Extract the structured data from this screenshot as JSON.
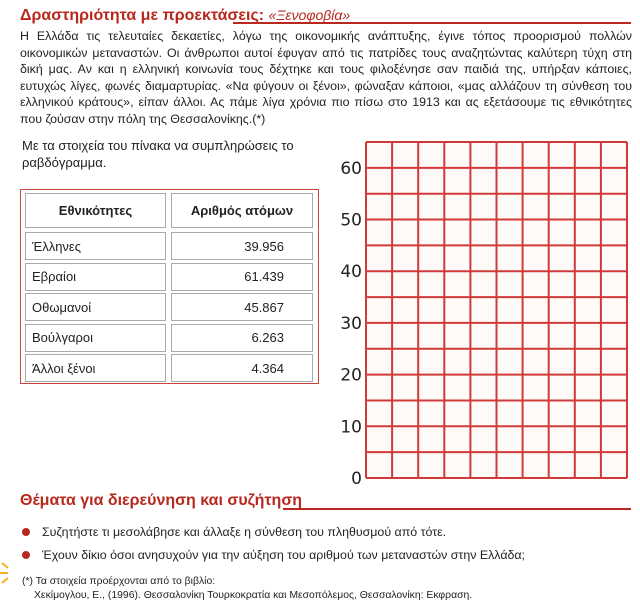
{
  "heading": {
    "title": "Δραστηριότητα με προεκτάσεις:",
    "subtitle": "«Ξενοφοβία»"
  },
  "body": "Η Ελλάδα τις τελευταίες δεκαετίες, λόγω της οικονομικής ανάπτυξης, έγινε τόπος προορισμού πολλών οικονομικών μεταναστών. Οι άνθρωποι αυτοί έφυγαν από τις πατρίδες τους αναζητώντας καλύτερη τύχη στη δική μας. Αν και η ελληνική κοινωνία τους δέχτηκε και τους φιλοξένησε σαν παιδιά της, υπήρξαν κάποιες, ευτυχώς λίγες, φωνές διαμαρτυρίας. «Να φύγουν οι ξένοι», φώναξαν κάποιοι, «μας αλλάζουν τη σύνθεση του ελληνικού κράτους», είπαν άλλοι. Ας πάμε λίγα χρόνια πιο πίσω στο 1913 και ας εξετάσουμε τις εθνικότητες που ζούσαν στην πόλη της Θεσσαλονίκης.(*)",
  "instruction": "Με τα στοιχεία του πίνακα να συμπληρώσεις το ραβδόγραμμα.",
  "table": {
    "headers": [
      "Εθνικότητες",
      "Αριθμός ατόμων"
    ],
    "rows": [
      [
        "Έλληνες",
        "39.956"
      ],
      [
        "Εβραίοι",
        "61.439"
      ],
      [
        "Οθωμανοί",
        "45.867"
      ],
      [
        "Βούλγαροι",
        "6.263"
      ],
      [
        "Άλλοι ξένοι",
        "4.364"
      ]
    ]
  },
  "chart_data": {
    "type": "bar",
    "categories": [],
    "values": [],
    "ylim": [
      0,
      65
    ],
    "yticks": [
      "0",
      "10",
      "20",
      "30",
      "40",
      "50",
      "60"
    ],
    "grid": true,
    "grid_color": "#d23a3a",
    "columns": 10
  },
  "discussion": {
    "title": "Θέματα για διερεύνηση και συζήτηση",
    "bullets": [
      "Συζητήστε τι μεσολάβησε και άλλαξε η σύνθεση του πληθυσμού από τότε.",
      "Έχουν δίκιο όσοι ανησυχούν για την αύξηση του αριθμού των μεταναστών στην Ελλάδα;"
    ]
  },
  "footnote": {
    "line1": "(*) Τα στοιχεία προέρχονται από το βιβλίο:",
    "line2": "Χεκίμογλου, Ε., (1996). Θεσσαλονίκη Τουρκοκρατία και Μεσοπόλεμος, Θεσσαλονίκη: Εκφραση."
  },
  "colors": {
    "accent": "#b8281e"
  }
}
